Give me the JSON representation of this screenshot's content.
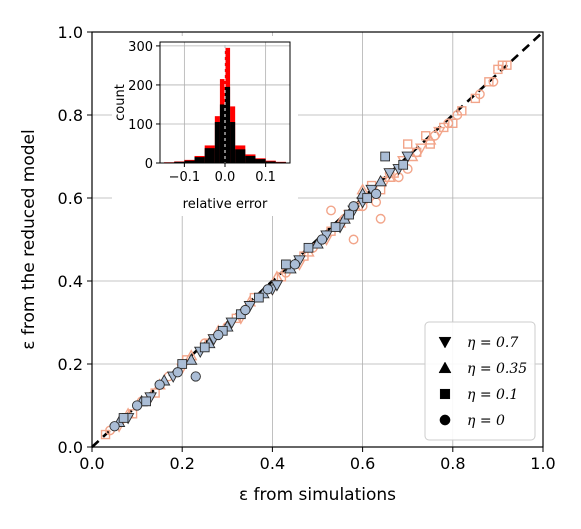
{
  "chart_data": {
    "type": "scatter",
    "xlabel": "ε from simulations",
    "ylabel": "ε from the reduced model",
    "xlim": [
      0,
      1
    ],
    "ylim": [
      0,
      1
    ],
    "xticks": [
      "0.0",
      "0.2",
      "0.4",
      "0.6",
      "0.8",
      "1.0"
    ],
    "yticks": [
      "0.0",
      "0.2",
      "0.4",
      "0.6",
      "0.8",
      "1.0"
    ],
    "grid": true,
    "legend_position": "lower-right",
    "reference_line": {
      "style": "dashed",
      "color": "#000000",
      "from": [
        0,
        0
      ],
      "to": [
        1,
        1
      ]
    },
    "colors": {
      "blue": "#aabdd6",
      "blue_edge": "#2b2b2b",
      "orange": "#f2a58a"
    },
    "legend": [
      {
        "marker": "triangle-down",
        "label": "η = 0.7"
      },
      {
        "marker": "triangle-up",
        "label": "η = 0.35"
      },
      {
        "marker": "square",
        "label": "η = 0.1"
      },
      {
        "marker": "circle",
        "label": "η = 0"
      }
    ],
    "series": [
      {
        "color": "blue",
        "marker": "triangle-down",
        "points": [
          [
            0.08,
            0.07
          ],
          [
            0.13,
            0.12
          ],
          [
            0.18,
            0.17
          ],
          [
            0.24,
            0.23
          ],
          [
            0.27,
            0.26
          ],
          [
            0.31,
            0.3
          ],
          [
            0.35,
            0.34
          ],
          [
            0.4,
            0.38
          ],
          [
            0.41,
            0.39
          ],
          [
            0.46,
            0.45
          ],
          [
            0.52,
            0.51
          ],
          [
            0.55,
            0.53
          ],
          [
            0.58,
            0.57
          ],
          [
            0.6,
            0.59
          ],
          [
            0.62,
            0.62
          ],
          [
            0.66,
            0.66
          ],
          [
            0.68,
            0.67
          ],
          [
            0.7,
            0.7
          ]
        ]
      },
      {
        "color": "blue",
        "marker": "triangle-up",
        "points": [
          [
            0.06,
            0.06
          ],
          [
            0.11,
            0.11
          ],
          [
            0.16,
            0.16
          ],
          [
            0.22,
            0.21
          ],
          [
            0.26,
            0.25
          ],
          [
            0.3,
            0.29
          ],
          [
            0.38,
            0.37
          ],
          [
            0.44,
            0.43
          ],
          [
            0.5,
            0.49
          ],
          [
            0.56,
            0.55
          ],
          [
            0.6,
            0.61
          ],
          [
            0.64,
            0.64
          ]
        ]
      },
      {
        "color": "blue",
        "marker": "square",
        "points": [
          [
            0.07,
            0.07
          ],
          [
            0.12,
            0.11
          ],
          [
            0.2,
            0.2
          ],
          [
            0.25,
            0.24
          ],
          [
            0.29,
            0.28
          ],
          [
            0.33,
            0.32
          ],
          [
            0.37,
            0.36
          ],
          [
            0.43,
            0.44
          ],
          [
            0.48,
            0.48
          ],
          [
            0.54,
            0.53
          ],
          [
            0.57,
            0.56
          ],
          [
            0.61,
            0.6
          ],
          [
            0.65,
            0.7
          ],
          [
            0.69,
            0.68
          ]
        ]
      },
      {
        "color": "blue",
        "marker": "circle",
        "points": [
          [
            0.05,
            0.05
          ],
          [
            0.1,
            0.1
          ],
          [
            0.15,
            0.15
          ],
          [
            0.19,
            0.18
          ],
          [
            0.23,
            0.17
          ],
          [
            0.28,
            0.27
          ],
          [
            0.34,
            0.33
          ],
          [
            0.39,
            0.38
          ],
          [
            0.45,
            0.44
          ],
          [
            0.51,
            0.5
          ],
          [
            0.58,
            0.58
          ],
          [
            0.63,
            0.61
          ]
        ]
      },
      {
        "color": "orange",
        "marker": "square",
        "points": [
          [
            0.03,
            0.03
          ],
          [
            0.09,
            0.08
          ],
          [
            0.14,
            0.13
          ],
          [
            0.21,
            0.21
          ],
          [
            0.26,
            0.25
          ],
          [
            0.32,
            0.31
          ],
          [
            0.36,
            0.36
          ],
          [
            0.42,
            0.41
          ],
          [
            0.47,
            0.46
          ],
          [
            0.53,
            0.52
          ],
          [
            0.59,
            0.58
          ],
          [
            0.62,
            0.63
          ],
          [
            0.64,
            0.62
          ],
          [
            0.67,
            0.66
          ],
          [
            0.7,
            0.73
          ],
          [
            0.72,
            0.71
          ],
          [
            0.74,
            0.75
          ],
          [
            0.75,
            0.73
          ],
          [
            0.78,
            0.77
          ],
          [
            0.8,
            0.78
          ],
          [
            0.82,
            0.81
          ],
          [
            0.85,
            0.84
          ],
          [
            0.88,
            0.88
          ],
          [
            0.9,
            0.91
          ],
          [
            0.91,
            0.92
          ],
          [
            0.92,
            0.92
          ]
        ]
      },
      {
        "color": "orange",
        "marker": "circle",
        "points": [
          [
            0.04,
            0.04
          ],
          [
            0.11,
            0.11
          ],
          [
            0.17,
            0.17
          ],
          [
            0.25,
            0.25
          ],
          [
            0.3,
            0.29
          ],
          [
            0.37,
            0.36
          ],
          [
            0.43,
            0.42
          ],
          [
            0.49,
            0.48
          ],
          [
            0.53,
            0.57
          ],
          [
            0.56,
            0.55
          ],
          [
            0.58,
            0.5
          ],
          [
            0.6,
            0.58
          ],
          [
            0.63,
            0.59
          ],
          [
            0.64,
            0.55
          ],
          [
            0.66,
            0.66
          ],
          [
            0.68,
            0.65
          ],
          [
            0.7,
            0.67
          ],
          [
            0.72,
            0.71
          ],
          [
            0.76,
            0.75
          ],
          [
            0.79,
            0.78
          ],
          [
            0.81,
            0.8
          ],
          [
            0.86,
            0.85
          ],
          [
            0.89,
            0.88
          ]
        ]
      },
      {
        "color": "orange",
        "marker": "triangle-down",
        "points": [
          [
            0.06,
            0.05
          ],
          [
            0.13,
            0.12
          ],
          [
            0.2,
            0.19
          ],
          [
            0.27,
            0.26
          ],
          [
            0.33,
            0.31
          ],
          [
            0.4,
            0.38
          ],
          [
            0.46,
            0.44
          ],
          [
            0.52,
            0.5
          ],
          [
            0.57,
            0.56
          ],
          [
            0.61,
            0.6
          ],
          [
            0.65,
            0.64
          ],
          [
            0.69,
            0.69
          ],
          [
            0.73,
            0.72
          ],
          [
            0.77,
            0.76
          ]
        ]
      },
      {
        "color": "orange",
        "marker": "triangle-up",
        "points": [
          [
            0.08,
            0.08
          ],
          [
            0.15,
            0.15
          ],
          [
            0.22,
            0.22
          ],
          [
            0.28,
            0.28
          ],
          [
            0.35,
            0.35
          ],
          [
            0.41,
            0.41
          ],
          [
            0.48,
            0.47
          ],
          [
            0.55,
            0.54
          ],
          [
            0.6,
            0.62
          ],
          [
            0.66,
            0.65
          ],
          [
            0.71,
            0.7
          ],
          [
            0.75,
            0.74
          ]
        ]
      }
    ],
    "inset": {
      "type": "histogram",
      "xlabel": "relative error",
      "ylabel": "count",
      "xticks": [
        "−0.1",
        "0.0",
        "0.1"
      ],
      "yticks": [
        "0",
        "100",
        "200",
        "300"
      ],
      "xlim": [
        -0.16,
        0.16
      ],
      "ylim": [
        0,
        310
      ],
      "bin_edges": [
        -0.15,
        -0.125,
        -0.1,
        -0.075,
        -0.05,
        -0.025,
        -0.0125,
        0.0,
        0.0125,
        0.025,
        0.05,
        0.075,
        0.1,
        0.125,
        0.15
      ],
      "red_counts": [
        2,
        4,
        8,
        18,
        45,
        120,
        215,
        295,
        145,
        45,
        22,
        12,
        6,
        3
      ],
      "black_counts": [
        1,
        3,
        6,
        15,
        38,
        105,
        150,
        195,
        105,
        35,
        18,
        10,
        4,
        2
      ],
      "colors": {
        "red": "#ff0000",
        "black": "#000000"
      }
    }
  }
}
